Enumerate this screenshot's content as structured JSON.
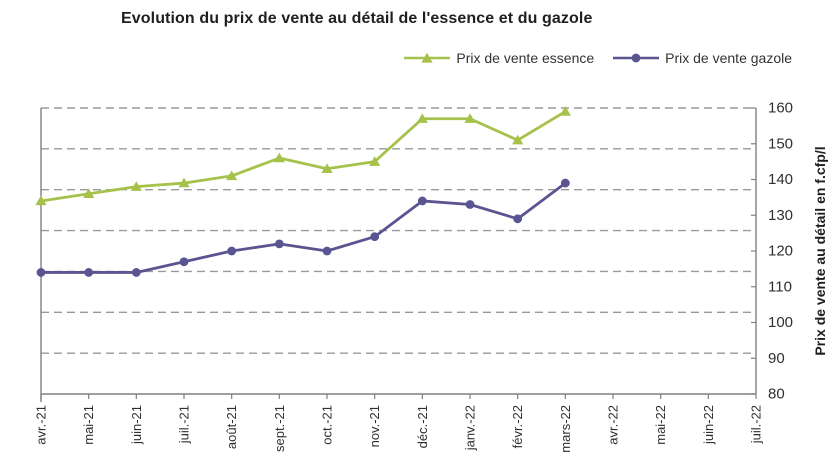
{
  "title": "Evolution du prix de vente au détail de l'essence et du gazole",
  "chart_data": {
    "type": "line",
    "title": "Evolution du prix de vente au détail de l'essence et du gazole",
    "categories": [
      "avr.-21",
      "mai-21",
      "juin-21",
      "juil.-21",
      "août-21",
      "sept.-21",
      "oct.-21",
      "nov.-21",
      "déc.-21",
      "janv.-22",
      "févr.-22",
      "mars-22",
      "avr.-22",
      "mai-22",
      "juin-22",
      "juil.-22"
    ],
    "series": [
      {
        "id": "essence",
        "name": "Prix de vente essence",
        "color": "#a6c24a",
        "marker": "triangle",
        "values": [
          134,
          136,
          138,
          139,
          141,
          146,
          143,
          145,
          157,
          157,
          151,
          159,
          null,
          null,
          null,
          null
        ]
      },
      {
        "id": "gazole",
        "name": "Prix de vente gazole",
        "color": "#5a5590",
        "marker": "circle",
        "values": [
          114,
          114,
          114,
          117,
          120,
          122,
          120,
          124,
          134,
          133,
          129,
          139,
          null,
          null,
          null,
          null
        ]
      }
    ],
    "xlabel": "",
    "ylabel": "Prix de vente au détail en f.cfp/l",
    "ylim": [
      80,
      160
    ],
    "yticks": [
      80,
      90,
      100,
      110,
      120,
      130,
      140,
      150,
      160
    ],
    "yaxis_side": "right",
    "grid": {
      "style": "dashed",
      "horizontal_divisions": 7
    },
    "legend_position": "top-right",
    "colors": {
      "axis": "#808080",
      "gridline": "#9a9a9a",
      "tick_text": "#303030",
      "title_text": "#1f1f1f"
    }
  }
}
